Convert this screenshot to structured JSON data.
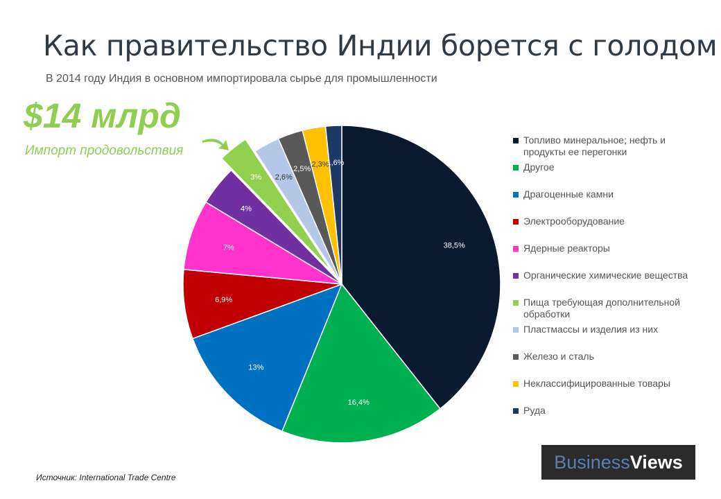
{
  "title": "Как правительство Индии борется с голодом",
  "subtitle": "В 2014 году Индия в основном импортировала сырье для промышленности",
  "highlight": {
    "amount": "$14 млрд",
    "caption": "Импорт продовольствия",
    "color": "#8fce50"
  },
  "source": "Источник: International Trade Centre",
  "logo": {
    "part1": "Business",
    "part2": "Views"
  },
  "chart_data": {
    "type": "pie",
    "title": "",
    "legend_position": "right",
    "slices": [
      {
        "name": "Топливо минеральное; нефть и продукты ее перегонки",
        "value": 38.5,
        "label": "38,5%",
        "color": "#0b1a2e"
      },
      {
        "name": "Другое",
        "value": 16.4,
        "label": "16,4%",
        "color": "#00b050"
      },
      {
        "name": "Драгоценные камни",
        "value": 13,
        "label": "13%",
        "color": "#0070c0"
      },
      {
        "name": "Электрооборудование",
        "value": 6.9,
        "label": "6,9%",
        "color": "#c00000"
      },
      {
        "name": "Ядерные реакторы",
        "value": 7,
        "label": "7%",
        "color": "#ff33cc"
      },
      {
        "name": "Органические химические вещества",
        "value": 4,
        "label": "4%",
        "color": "#7030a0"
      },
      {
        "name": "Пища требующая дополнительной обработки",
        "value": 3,
        "label": "3%",
        "color": "#92d050",
        "exploded": true
      },
      {
        "name": "Пластмассы и изделия из них",
        "value": 2.6,
        "label": "2,6%",
        "color": "#b4c7e7"
      },
      {
        "name": "Железо и сталь",
        "value": 2.5,
        "label": "2,5%",
        "color": "#595959"
      },
      {
        "name": "Неклассифицированные товары",
        "value": 2.3,
        "label": "2,3%",
        "color": "#ffc000"
      },
      {
        "name": "Руда",
        "value": 1.6,
        "label": "1,6%",
        "color": "#1f3864"
      }
    ]
  }
}
